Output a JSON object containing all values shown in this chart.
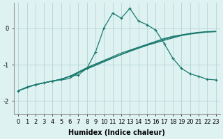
{
  "xlabel": "Humidex (Indice chaleur)",
  "bg_color": "#dff2f2",
  "line_color": "#1a7a6e",
  "grid_color": "#b8d8d8",
  "xlim": [
    -0.5,
    23.5
  ],
  "ylim": [
    -2.35,
    0.7
  ],
  "yticks": [
    0,
    -1,
    -2
  ],
  "xticks": [
    0,
    1,
    2,
    3,
    4,
    5,
    6,
    7,
    8,
    9,
    10,
    11,
    12,
    13,
    14,
    15,
    16,
    17,
    18,
    19,
    20,
    21,
    22,
    23
  ],
  "peaked_x": [
    0,
    1,
    2,
    3,
    4,
    5,
    6,
    7,
    8,
    9,
    10,
    11,
    12,
    13,
    14,
    15,
    16,
    17,
    18,
    19,
    20,
    21,
    22,
    23
  ],
  "peaked_y": [
    -1.72,
    -1.62,
    -1.55,
    -1.5,
    -1.45,
    -1.4,
    -1.32,
    -1.28,
    -1.1,
    -0.65,
    0.02,
    0.42,
    0.28,
    0.55,
    0.2,
    0.1,
    -0.05,
    -0.42,
    -0.82,
    -1.1,
    -1.25,
    -1.32,
    -1.4,
    -1.42
  ],
  "line1_x": [
    0,
    1,
    2,
    3,
    4,
    5,
    6,
    7,
    8,
    9,
    10,
    11,
    12,
    13,
    14,
    15,
    16,
    17,
    18,
    19,
    20,
    21,
    22,
    23
  ],
  "line1_y": [
    -1.72,
    -1.62,
    -1.55,
    -1.5,
    -1.45,
    -1.4,
    -1.32,
    -1.2,
    -1.08,
    -0.98,
    -0.88,
    -0.78,
    -0.68,
    -0.6,
    -0.52,
    -0.44,
    -0.36,
    -0.28,
    -0.22,
    -0.18,
    -0.14,
    -0.11,
    -0.09,
    -0.08
  ],
  "line2_x": [
    0,
    1,
    2,
    3,
    4,
    5,
    6,
    7,
    8,
    9,
    10,
    11,
    12,
    13,
    14,
    15,
    16,
    17,
    18,
    19,
    20,
    21,
    22,
    23
  ],
  "line2_y": [
    -1.72,
    -1.62,
    -1.55,
    -1.5,
    -1.45,
    -1.4,
    -1.32,
    -1.22,
    -1.12,
    -1.02,
    -0.92,
    -0.82,
    -0.72,
    -0.62,
    -0.53,
    -0.45,
    -0.38,
    -0.3,
    -0.24,
    -0.19,
    -0.15,
    -0.12,
    -0.1,
    -0.09
  ],
  "line3_x": [
    0,
    2,
    3,
    4,
    5,
    6,
    7,
    8,
    10,
    12,
    14,
    15,
    16,
    17,
    19,
    20,
    21,
    22,
    23
  ],
  "line3_y": [
    -1.72,
    -1.55,
    -1.5,
    -1.45,
    -1.42,
    -1.38,
    -1.22,
    -1.1,
    -0.9,
    -0.72,
    -0.55,
    -0.47,
    -0.4,
    -0.33,
    -0.2,
    -0.16,
    -0.13,
    -0.1,
    -0.09
  ],
  "tick_fontsize": 6,
  "axis_fontsize": 7
}
